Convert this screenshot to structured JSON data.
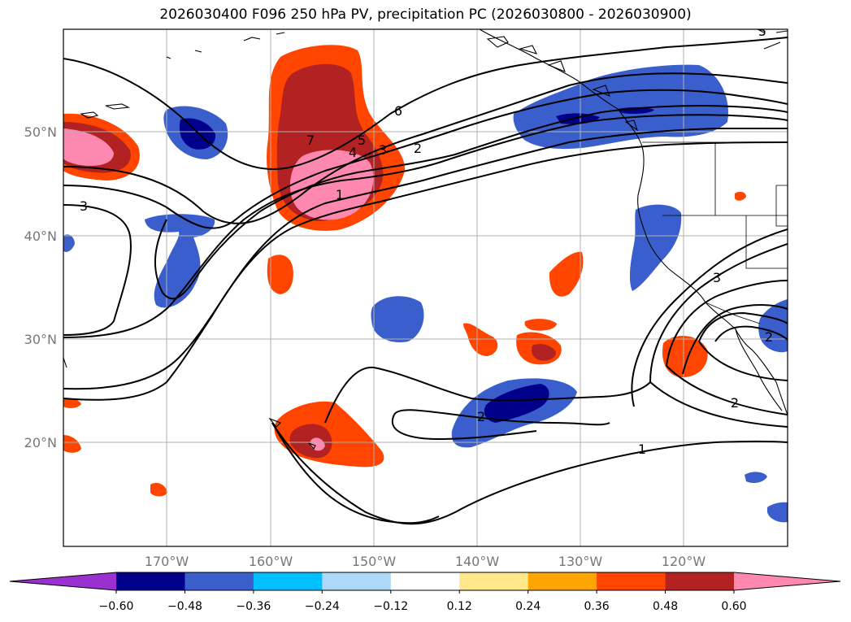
{
  "title": "2026030400 F096 250 hPa PV, precipitation PC (2026030800 - 2026030900)",
  "map": {
    "lat_labels": [
      "50°N",
      "40°N",
      "30°N",
      "20°N"
    ],
    "lon_labels": [
      "170°W",
      "160°W",
      "150°W",
      "140°W",
      "130°W",
      "120°W"
    ],
    "grid": true,
    "coastlines": true
  },
  "pv_contour_labels": [
    "7",
    "6",
    "5",
    "4",
    "3",
    "2",
    "1",
    "3",
    "2",
    "1",
    "2",
    "3",
    "2",
    "5"
  ],
  "colorbar": {
    "ticks": [
      "−0.60",
      "−0.48",
      "−0.36",
      "−0.24",
      "−0.12",
      "0.12",
      "0.24",
      "0.36",
      "0.48",
      "0.60"
    ],
    "colors": [
      "#9b30d0",
      "#00008b",
      "#3a5fcd",
      "#00bfff",
      "#add8f7",
      "#ffffff",
      "#ffe88a",
      "#ffa500",
      "#ff4500",
      "#b22222",
      "#ff88b0",
      "#ff88b0"
    ],
    "extend": "both"
  }
}
